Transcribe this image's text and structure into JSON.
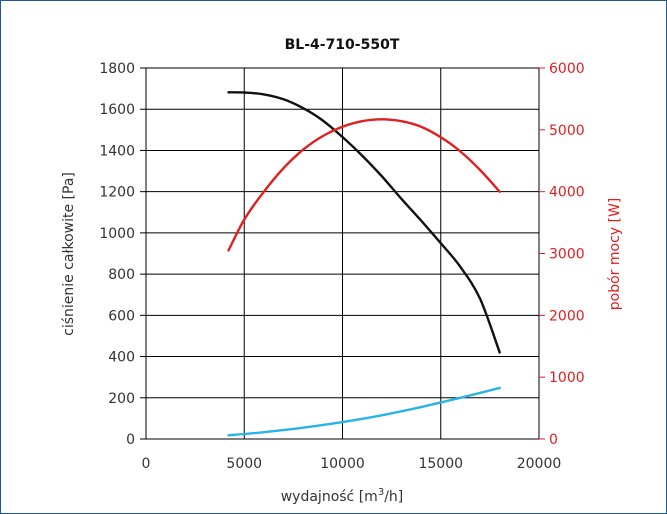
{
  "chart_data": {
    "type": "line",
    "title": "BL-4-710-550T",
    "xlabel": "wydajność [m³/h]",
    "ylabel_left": "ciśnienie całkowite [Pa]",
    "ylabel_right": "pobór mocy [W]",
    "xlim": [
      0,
      20000
    ],
    "ylim_left": [
      0,
      1800
    ],
    "ylim_right": [
      0,
      6000
    ],
    "x_ticks": [
      "0",
      "5000",
      "10000",
      "15000",
      "20000"
    ],
    "y_ticks_left": [
      "0",
      "200",
      "400",
      "600",
      "800",
      "1000",
      "1200",
      "1400",
      "1600",
      "1800"
    ],
    "y_ticks_right": [
      "0",
      "1000",
      "2000",
      "3000",
      "4000",
      "5000",
      "6000"
    ],
    "grid": true,
    "series": [
      {
        "axis": "left",
        "color": "#111111",
        "x": [
          4200,
          5000,
          6000,
          7000,
          8000,
          9000,
          10000,
          11000,
          12000,
          13000,
          14000,
          15000,
          16000,
          17000,
          18000
        ],
        "y": [
          1682,
          1681,
          1672,
          1648,
          1605,
          1545,
          1465,
          1375,
          1275,
          1165,
          1060,
          950,
          835,
          680,
          420
        ]
      },
      {
        "axis": "right",
        "color": "#e02020",
        "x": [
          4200,
          5000,
          6000,
          7000,
          8000,
          9000,
          10000,
          11000,
          12000,
          13000,
          14000,
          15000,
          16000,
          17000,
          18000
        ],
        "y": [
          3050,
          3550,
          4000,
          4380,
          4680,
          4900,
          5050,
          5140,
          5170,
          5140,
          5050,
          4880,
          4650,
          4350,
          4000
        ]
      },
      {
        "axis": "left",
        "color": "#29b3e6",
        "x": [
          4200,
          6000,
          8000,
          10000,
          12000,
          14000,
          16000,
          18000
        ],
        "y": [
          18,
          33,
          55,
          82,
          115,
          155,
          200,
          248
        ]
      }
    ]
  }
}
